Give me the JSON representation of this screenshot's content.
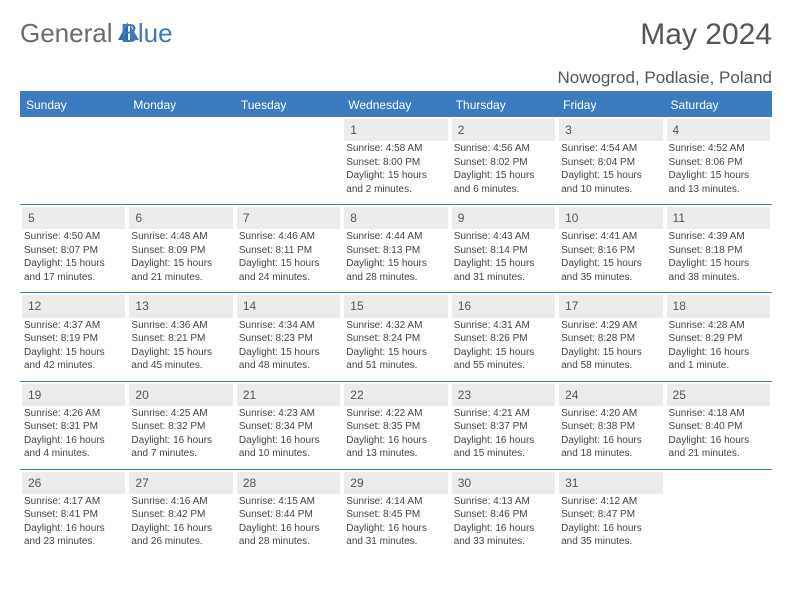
{
  "brand": {
    "part1": "General",
    "part2": "Blue"
  },
  "title": "May 2024",
  "location": "Nowogrod, Podlasie, Poland",
  "colors": {
    "accent": "#3b7bbf",
    "dayBg": "#ececec",
    "text": "#444444",
    "bg": "#ffffff"
  },
  "weekdays": [
    "Sunday",
    "Monday",
    "Tuesday",
    "Wednesday",
    "Thursday",
    "Friday",
    "Saturday"
  ],
  "weeks": [
    [
      null,
      null,
      null,
      {
        "n": "1",
        "sunrise": "4:58 AM",
        "sunset": "8:00 PM",
        "daylight": "15 hours and 2 minutes."
      },
      {
        "n": "2",
        "sunrise": "4:56 AM",
        "sunset": "8:02 PM",
        "daylight": "15 hours and 6 minutes."
      },
      {
        "n": "3",
        "sunrise": "4:54 AM",
        "sunset": "8:04 PM",
        "daylight": "15 hours and 10 minutes."
      },
      {
        "n": "4",
        "sunrise": "4:52 AM",
        "sunset": "8:06 PM",
        "daylight": "15 hours and 13 minutes."
      }
    ],
    [
      {
        "n": "5",
        "sunrise": "4:50 AM",
        "sunset": "8:07 PM",
        "daylight": "15 hours and 17 minutes."
      },
      {
        "n": "6",
        "sunrise": "4:48 AM",
        "sunset": "8:09 PM",
        "daylight": "15 hours and 21 minutes."
      },
      {
        "n": "7",
        "sunrise": "4:46 AM",
        "sunset": "8:11 PM",
        "daylight": "15 hours and 24 minutes."
      },
      {
        "n": "8",
        "sunrise": "4:44 AM",
        "sunset": "8:13 PM",
        "daylight": "15 hours and 28 minutes."
      },
      {
        "n": "9",
        "sunrise": "4:43 AM",
        "sunset": "8:14 PM",
        "daylight": "15 hours and 31 minutes."
      },
      {
        "n": "10",
        "sunrise": "4:41 AM",
        "sunset": "8:16 PM",
        "daylight": "15 hours and 35 minutes."
      },
      {
        "n": "11",
        "sunrise": "4:39 AM",
        "sunset": "8:18 PM",
        "daylight": "15 hours and 38 minutes."
      }
    ],
    [
      {
        "n": "12",
        "sunrise": "4:37 AM",
        "sunset": "8:19 PM",
        "daylight": "15 hours and 42 minutes."
      },
      {
        "n": "13",
        "sunrise": "4:36 AM",
        "sunset": "8:21 PM",
        "daylight": "15 hours and 45 minutes."
      },
      {
        "n": "14",
        "sunrise": "4:34 AM",
        "sunset": "8:23 PM",
        "daylight": "15 hours and 48 minutes."
      },
      {
        "n": "15",
        "sunrise": "4:32 AM",
        "sunset": "8:24 PM",
        "daylight": "15 hours and 51 minutes."
      },
      {
        "n": "16",
        "sunrise": "4:31 AM",
        "sunset": "8:26 PM",
        "daylight": "15 hours and 55 minutes."
      },
      {
        "n": "17",
        "sunrise": "4:29 AM",
        "sunset": "8:28 PM",
        "daylight": "15 hours and 58 minutes."
      },
      {
        "n": "18",
        "sunrise": "4:28 AM",
        "sunset": "8:29 PM",
        "daylight": "16 hours and 1 minute."
      }
    ],
    [
      {
        "n": "19",
        "sunrise": "4:26 AM",
        "sunset": "8:31 PM",
        "daylight": "16 hours and 4 minutes."
      },
      {
        "n": "20",
        "sunrise": "4:25 AM",
        "sunset": "8:32 PM",
        "daylight": "16 hours and 7 minutes."
      },
      {
        "n": "21",
        "sunrise": "4:23 AM",
        "sunset": "8:34 PM",
        "daylight": "16 hours and 10 minutes."
      },
      {
        "n": "22",
        "sunrise": "4:22 AM",
        "sunset": "8:35 PM",
        "daylight": "16 hours and 13 minutes."
      },
      {
        "n": "23",
        "sunrise": "4:21 AM",
        "sunset": "8:37 PM",
        "daylight": "16 hours and 15 minutes."
      },
      {
        "n": "24",
        "sunrise": "4:20 AM",
        "sunset": "8:38 PM",
        "daylight": "16 hours and 18 minutes."
      },
      {
        "n": "25",
        "sunrise": "4:18 AM",
        "sunset": "8:40 PM",
        "daylight": "16 hours and 21 minutes."
      }
    ],
    [
      {
        "n": "26",
        "sunrise": "4:17 AM",
        "sunset": "8:41 PM",
        "daylight": "16 hours and 23 minutes."
      },
      {
        "n": "27",
        "sunrise": "4:16 AM",
        "sunset": "8:42 PM",
        "daylight": "16 hours and 26 minutes."
      },
      {
        "n": "28",
        "sunrise": "4:15 AM",
        "sunset": "8:44 PM",
        "daylight": "16 hours and 28 minutes."
      },
      {
        "n": "29",
        "sunrise": "4:14 AM",
        "sunset": "8:45 PM",
        "daylight": "16 hours and 31 minutes."
      },
      {
        "n": "30",
        "sunrise": "4:13 AM",
        "sunset": "8:46 PM",
        "daylight": "16 hours and 33 minutes."
      },
      {
        "n": "31",
        "sunrise": "4:12 AM",
        "sunset": "8:47 PM",
        "daylight": "16 hours and 35 minutes."
      },
      null
    ]
  ],
  "labels": {
    "sunrise": "Sunrise:",
    "sunset": "Sunset:",
    "daylight": "Daylight:"
  }
}
